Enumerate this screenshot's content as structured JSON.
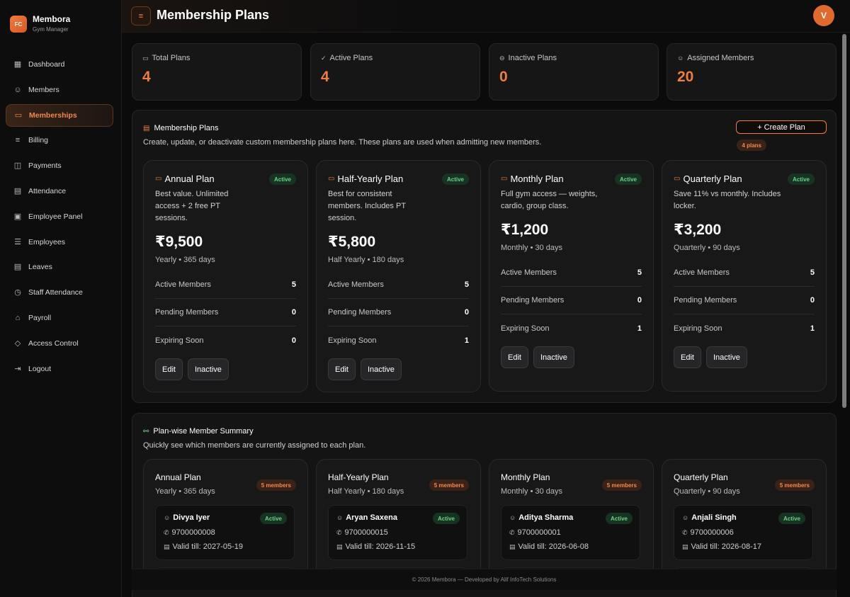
{
  "brand": {
    "logo": "FC",
    "name": "Membora",
    "subtitle": "Gym Manager"
  },
  "nav": [
    {
      "label": "Dashboard",
      "icon": "grid-icon",
      "glyph": "▦"
    },
    {
      "label": "Members",
      "icon": "users-icon",
      "glyph": "☺"
    },
    {
      "label": "Memberships",
      "icon": "card-icon",
      "glyph": "▭",
      "active": true
    },
    {
      "label": "Billing",
      "icon": "billing-icon",
      "glyph": "≡"
    },
    {
      "label": "Payments",
      "icon": "cash-icon",
      "glyph": "◫"
    },
    {
      "label": "Attendance",
      "icon": "calendar-icon",
      "glyph": "▤"
    },
    {
      "label": "Employee Panel",
      "icon": "id-badge-icon",
      "glyph": "▣"
    },
    {
      "label": "Employees",
      "icon": "list-users-icon",
      "glyph": "☰"
    },
    {
      "label": "Leaves",
      "icon": "calendar-x-icon",
      "glyph": "▤"
    },
    {
      "label": "Staff Attendance",
      "icon": "clock-icon",
      "glyph": "◷"
    },
    {
      "label": "Payroll",
      "icon": "bank-icon",
      "glyph": "⌂"
    },
    {
      "label": "Access Control",
      "icon": "shield-icon",
      "glyph": "◇"
    },
    {
      "label": "Logout",
      "icon": "logout-icon",
      "glyph": "⇥"
    }
  ],
  "header": {
    "menu_glyph": "≡",
    "title": "Membership Plans",
    "avatar": "V"
  },
  "stats": [
    {
      "label": "Total Plans",
      "value": "4",
      "icon": "card-icon",
      "glyph": "▭"
    },
    {
      "label": "Active Plans",
      "value": "4",
      "icon": "check-circle-icon",
      "glyph": "✓"
    },
    {
      "label": "Inactive Plans",
      "value": "0",
      "icon": "minus-circle-icon",
      "glyph": "⊖"
    },
    {
      "label": "Assigned Members",
      "value": "20",
      "icon": "users-icon",
      "glyph": "☺"
    }
  ],
  "plans_panel": {
    "title": "Membership Plans",
    "subtitle": "Create, update, or deactivate custom membership plans here. These plans are used when admitting new members.",
    "create_label": "+ Create Plan",
    "count_badge": "4 plans"
  },
  "plans": [
    {
      "name": "Annual Plan",
      "status": "Active",
      "desc": "Best value. Unlimited access + 2 free PT sessions.",
      "price": "₹9,500",
      "period": "Yearly • 365 days",
      "rows": [
        {
          "label": "Active Members",
          "value": "5"
        },
        {
          "label": "Pending Members",
          "value": "0"
        },
        {
          "label": "Expiring Soon",
          "value": "0"
        }
      ],
      "edit": "Edit",
      "inactive": "Inactive"
    },
    {
      "name": "Half-Yearly Plan",
      "status": "Active",
      "desc": "Best for consistent members. Includes PT session.",
      "price": "₹5,800",
      "period": "Half Yearly • 180 days",
      "rows": [
        {
          "label": "Active Members",
          "value": "5"
        },
        {
          "label": "Pending Members",
          "value": "0"
        },
        {
          "label": "Expiring Soon",
          "value": "1"
        }
      ],
      "edit": "Edit",
      "inactive": "Inactive"
    },
    {
      "name": "Monthly Plan",
      "status": "Active",
      "desc": "Full gym access — weights, cardio, group class.",
      "price": "₹1,200",
      "period": "Monthly • 30 days",
      "rows": [
        {
          "label": "Active Members",
          "value": "5"
        },
        {
          "label": "Pending Members",
          "value": "0"
        },
        {
          "label": "Expiring Soon",
          "value": "1"
        }
      ],
      "edit": "Edit",
      "inactive": "Inactive"
    },
    {
      "name": "Quarterly Plan",
      "status": "Active",
      "desc": "Save 11% vs monthly. Includes locker.",
      "price": "₹3,200",
      "period": "Quarterly • 90 days",
      "rows": [
        {
          "label": "Active Members",
          "value": "5"
        },
        {
          "label": "Pending Members",
          "value": "0"
        },
        {
          "label": "Expiring Soon",
          "value": "1"
        }
      ],
      "edit": "Edit",
      "inactive": "Inactive"
    }
  ],
  "summary_panel": {
    "title": "Plan-wise Member Summary",
    "subtitle": "Quickly see which members are currently assigned to each plan."
  },
  "summary": [
    {
      "name": "Annual Plan",
      "period": "Yearly • 365 days",
      "count": "5 members",
      "member": {
        "name": "Divya Iyer",
        "status": "Active",
        "phone": "9700000008",
        "valid": "Valid till: 2027-05-19"
      }
    },
    {
      "name": "Half-Yearly Plan",
      "period": "Half Yearly • 180 days",
      "count": "5 members",
      "member": {
        "name": "Aryan Saxena",
        "status": "Active",
        "phone": "9700000015",
        "valid": "Valid till: 2026-11-15"
      }
    },
    {
      "name": "Monthly Plan",
      "period": "Monthly • 30 days",
      "count": "5 members",
      "member": {
        "name": "Aditya Sharma",
        "status": "Active",
        "phone": "9700000001",
        "valid": "Valid till: 2026-06-08"
      }
    },
    {
      "name": "Quarterly Plan",
      "period": "Quarterly • 90 days",
      "count": "5 members",
      "member": {
        "name": "Anjali Singh",
        "status": "Active",
        "phone": "9700000006",
        "valid": "Valid till: 2026-08-17"
      }
    }
  ],
  "footer": "© 2026 Membora — Developed by Alif InfoTech Solutions",
  "colors": {
    "accent": "#ef7d3f",
    "active_badge": "#6ad28a",
    "background": "#0b0b0c"
  }
}
